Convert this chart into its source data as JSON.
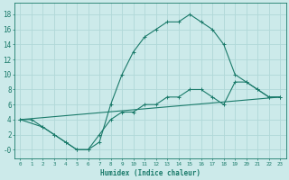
{
  "xlabel": "Humidex (Indice chaleur)",
  "bg_color": "#cceaea",
  "grid_color": "#b0d8d8",
  "line_color": "#1a7a6a",
  "xlim": [
    -0.5,
    23.5
  ],
  "ylim": [
    -1.2,
    19.5
  ],
  "xticks": [
    0,
    1,
    2,
    3,
    4,
    5,
    6,
    7,
    8,
    9,
    10,
    11,
    12,
    13,
    14,
    15,
    16,
    17,
    18,
    19,
    20,
    21,
    22,
    23
  ],
  "yticks": [
    0,
    2,
    4,
    6,
    8,
    10,
    12,
    14,
    16,
    18
  ],
  "ytick_labels": [
    "-0",
    "2",
    "4",
    "6",
    "8",
    "10",
    "12",
    "14",
    "16",
    "18"
  ],
  "line1_x": [
    0,
    1,
    2,
    3,
    4,
    5,
    6,
    7,
    8,
    9,
    10,
    11,
    12,
    13,
    14,
    15,
    16,
    17,
    18,
    19,
    20,
    21,
    22,
    23
  ],
  "line1_y": [
    4,
    4,
    3,
    2,
    1,
    0,
    0,
    1,
    6,
    10,
    13,
    15,
    16,
    17,
    17,
    18,
    17,
    16,
    14,
    10,
    9,
    8,
    7,
    7
  ],
  "line2_x": [
    0,
    2,
    3,
    4,
    5,
    6,
    7,
    8,
    9,
    10,
    11,
    12,
    13,
    14,
    15,
    16,
    17,
    18,
    19,
    20,
    21,
    22,
    23
  ],
  "line2_y": [
    4,
    3,
    2,
    1,
    0,
    0,
    2,
    4,
    5,
    5,
    6,
    6,
    7,
    7,
    8,
    8,
    7,
    6,
    9,
    9,
    8,
    7,
    7
  ],
  "line3_x": [
    0,
    23
  ],
  "line3_y": [
    4,
    7
  ]
}
